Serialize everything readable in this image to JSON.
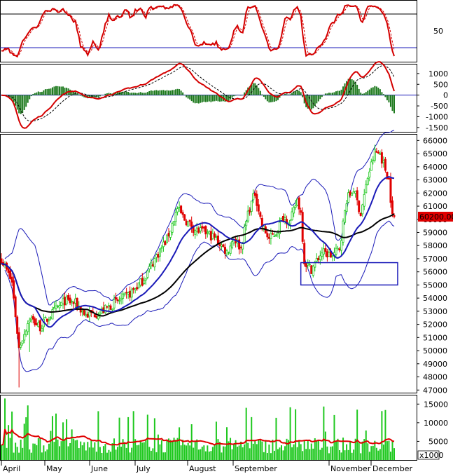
{
  "chart_data": [
    {
      "type": "line",
      "panel": "oscillator",
      "yticks": [
        50
      ],
      "reference_lines": [
        80,
        20
      ],
      "colors": {
        "main": "#d40000",
        "signal": "#d40000",
        "reference_upper": "#000000",
        "reference_lower": "#1a1ab8"
      }
    },
    {
      "type": "line",
      "panel": "macd",
      "yticks": [
        1000,
        500,
        0,
        -500,
        -1000,
        -1500
      ],
      "ylim": [
        -1700,
        1450
      ],
      "colors": {
        "macd": "#d40000",
        "signal": "#000000",
        "histogram": "#1e7a1e"
      }
    },
    {
      "type": "candlestick",
      "panel": "price",
      "ylim": [
        46800,
        66500
      ],
      "yticks": [
        66000,
        65000,
        64000,
        63000,
        62000,
        61000,
        60000,
        59000,
        58000,
        57000,
        56000,
        55000,
        54000,
        53000,
        52000,
        51000,
        50000,
        49000,
        48000,
        47000
      ],
      "last_price": "60200.00",
      "last_value": 60200,
      "months": [
        "April",
        "May",
        "June",
        "July",
        "August",
        "September",
        "November",
        "December"
      ],
      "keypoints": [
        [
          0,
          57000
        ],
        [
          6,
          55200
        ],
        [
          10,
          50200
        ],
        [
          16,
          52500
        ],
        [
          22,
          51800
        ],
        [
          30,
          53000
        ],
        [
          36,
          53800
        ],
        [
          42,
          53600
        ],
        [
          48,
          52700
        ],
        [
          56,
          52900
        ],
        [
          64,
          53600
        ],
        [
          72,
          54200
        ],
        [
          80,
          55300
        ],
        [
          88,
          57200
        ],
        [
          94,
          58500
        ],
        [
          100,
          60800
        ],
        [
          104,
          60000
        ],
        [
          110,
          59200
        ],
        [
          116,
          59000
        ],
        [
          122,
          58500
        ],
        [
          128,
          57500
        ],
        [
          132,
          58600
        ],
        [
          136,
          57800
        ],
        [
          140,
          60500
        ],
        [
          144,
          62000
        ],
        [
          148,
          59500
        ],
        [
          152,
          58500
        ],
        [
          156,
          59000
        ],
        [
          160,
          60200
        ],
        [
          164,
          59800
        ],
        [
          168,
          61500
        ],
        [
          170,
          60500
        ],
        [
          172,
          56800
        ],
        [
          176,
          56200
        ],
        [
          182,
          57500
        ],
        [
          188,
          57200
        ],
        [
          192,
          57800
        ],
        [
          196,
          61500
        ],
        [
          200,
          62300
        ],
        [
          204,
          60400
        ],
        [
          208,
          63200
        ],
        [
          212,
          65100
        ],
        [
          215,
          65000
        ],
        [
          218,
          63800
        ],
        [
          220,
          63000
        ],
        [
          222,
          60200
        ]
      ],
      "colors": {
        "up": "#1ec81e",
        "down": "#e00000",
        "ma_fast": "#1a1ab8",
        "ma_slow": "#000000",
        "bands": "#1a1ab8",
        "highlight_box": "#1a1ab8",
        "price_label_bg": "#e00000"
      }
    },
    {
      "type": "bar",
      "panel": "volume",
      "yticks": [
        15000,
        10000,
        5000
      ],
      "unit_label": "x1000",
      "ylim": [
        0,
        17500
      ],
      "colors": {
        "bars": "#1ec81e",
        "ma": "#e00000"
      }
    }
  ]
}
